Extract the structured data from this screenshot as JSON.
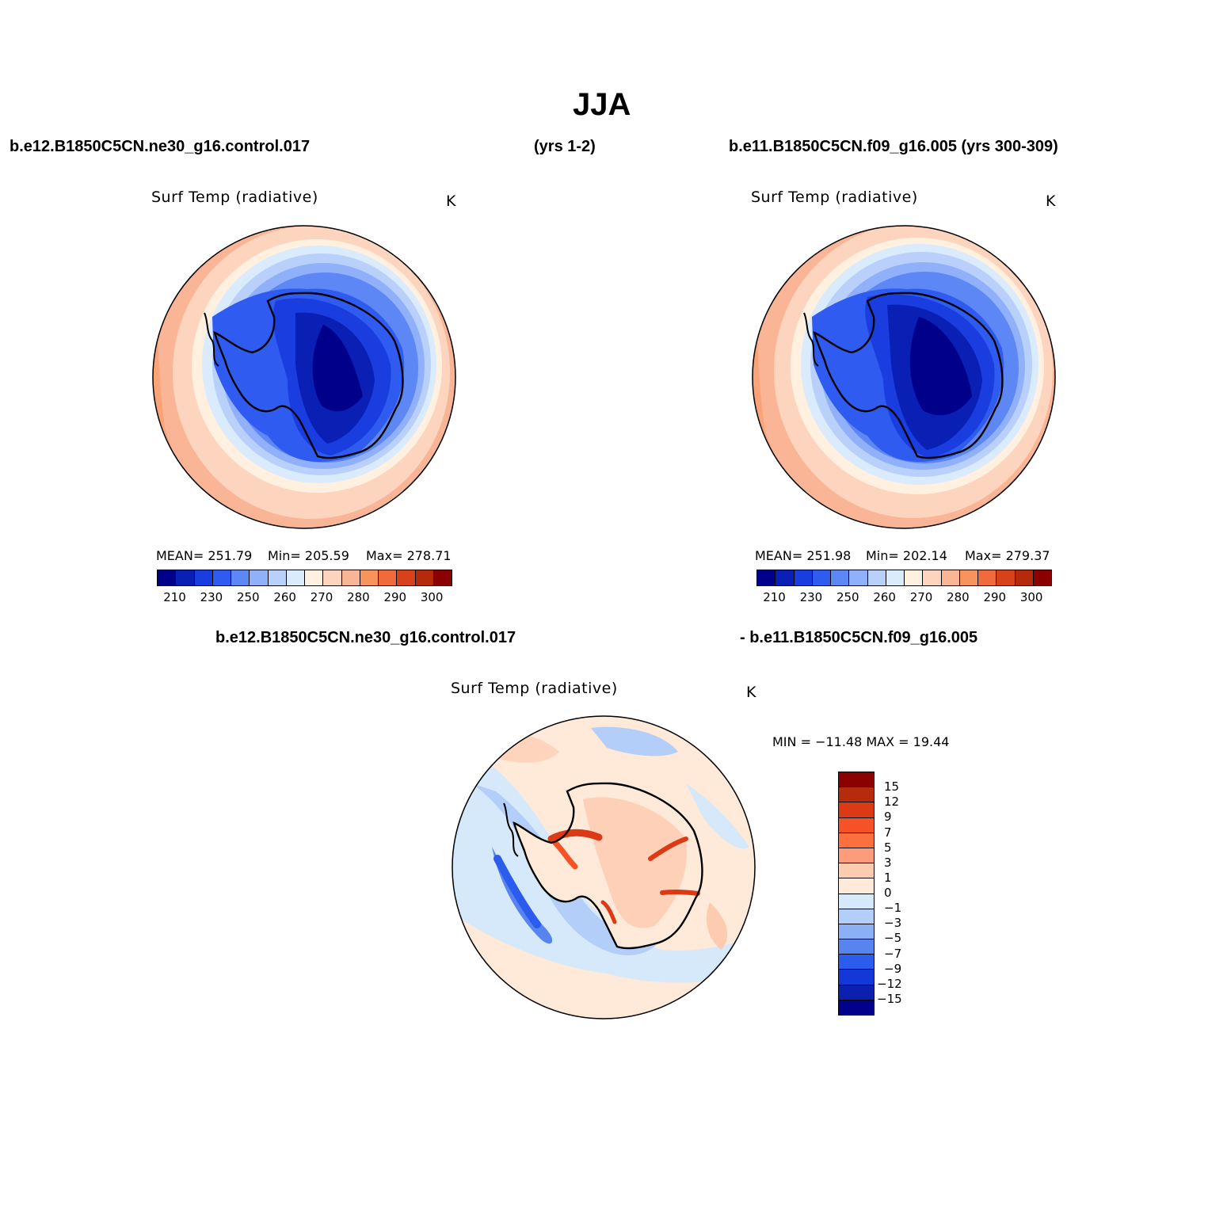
{
  "title": "JJA",
  "top_left_header": "b.e12.B1850C5CN.ne30_g16.control.017",
  "top_mid_header": "(yrs 1-2)",
  "top_right_header": "b.e11.B1850C5CN.f09_g16.005 (yrs 300-309)",
  "bottom_header_left": "b.e12.B1850C5CN.ne30_g16.control.017",
  "bottom_header_right": "- b.e11.B1850C5CN.f09_g16.005",
  "colors": {
    "abs": [
      "#00008b",
      "#0a1fb4",
      "#1a3de0",
      "#2f5bf0",
      "#5d87f5",
      "#91b0fa",
      "#b9d0fb",
      "#d9ebfc",
      "#fff0df",
      "#fdd5bf",
      "#fab596",
      "#f8935d",
      "#f06a3c",
      "#d8421b",
      "#b42a0a",
      "#8b0000"
    ],
    "diff": [
      "#8b0000",
      "#b52b0b",
      "#dc3a14",
      "#f55327",
      "#fd6f3f",
      "#fc9c7a",
      "#fdcbb0",
      "#ffe9d9",
      "#d6e9fa",
      "#b3cef8",
      "#8cb0f5",
      "#5784ef",
      "#2b5ced",
      "#1437d8",
      "#0c20b0",
      "#01018b"
    ]
  },
  "panels": {
    "p1": {
      "varname": "Surf Temp (radiative)",
      "units": "K",
      "mean": "MEAN= 251.79",
      "min": "Min= 205.59",
      "max": "Max= 278.71",
      "ticks": [
        "210",
        "230",
        "250",
        "260",
        "270",
        "280",
        "290",
        "300"
      ]
    },
    "p2": {
      "varname": "Surf Temp (radiative)",
      "units": "K",
      "mean": "MEAN= 251.98",
      "min": "Min= 202.14",
      "max": "Max= 279.37",
      "ticks": [
        "210",
        "230",
        "250",
        "260",
        "270",
        "280",
        "290",
        "300"
      ]
    },
    "p3": {
      "varname": "Surf Temp (radiative)",
      "units": "K",
      "minmax": "MIN = −11.48 MAX =  19.44",
      "ticks": [
        "15",
        "12",
        "9",
        "7",
        "5",
        "3",
        "1",
        "0",
        "−1",
        "−3",
        "−5",
        "−7",
        "−9",
        "−12",
        "−15"
      ]
    }
  }
}
